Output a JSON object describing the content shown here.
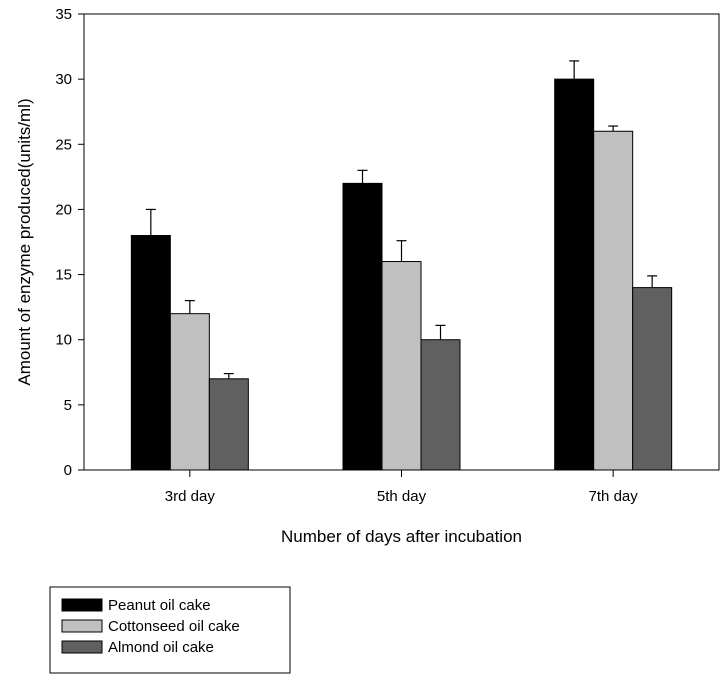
{
  "chart_data": {
    "type": "bar",
    "title": "",
    "xlabel": "Number of days after incubation",
    "ylabel": "Amount of enzyme produced(units/ml)",
    "ylim": [
      0,
      35
    ],
    "yticks": [
      0,
      5,
      10,
      15,
      20,
      25,
      30,
      35
    ],
    "grid": false,
    "legend_position": "bottom-left",
    "categories": [
      "3rd day",
      "5th day",
      "7th day"
    ],
    "series": [
      {
        "name": "Peanut oil cake",
        "color": "#000000",
        "values": [
          18,
          22,
          30
        ],
        "errors": [
          2,
          1,
          1.4
        ]
      },
      {
        "name": "Cottonseed oil cake",
        "color": "#c0c0c0",
        "values": [
          12,
          16,
          26
        ],
        "errors": [
          1,
          1.6,
          0.4
        ]
      },
      {
        "name": "Almond oil cake",
        "color": "#606060",
        "values": [
          7,
          10,
          14
        ],
        "errors": [
          0.4,
          1.1,
          0.9
        ]
      }
    ]
  }
}
